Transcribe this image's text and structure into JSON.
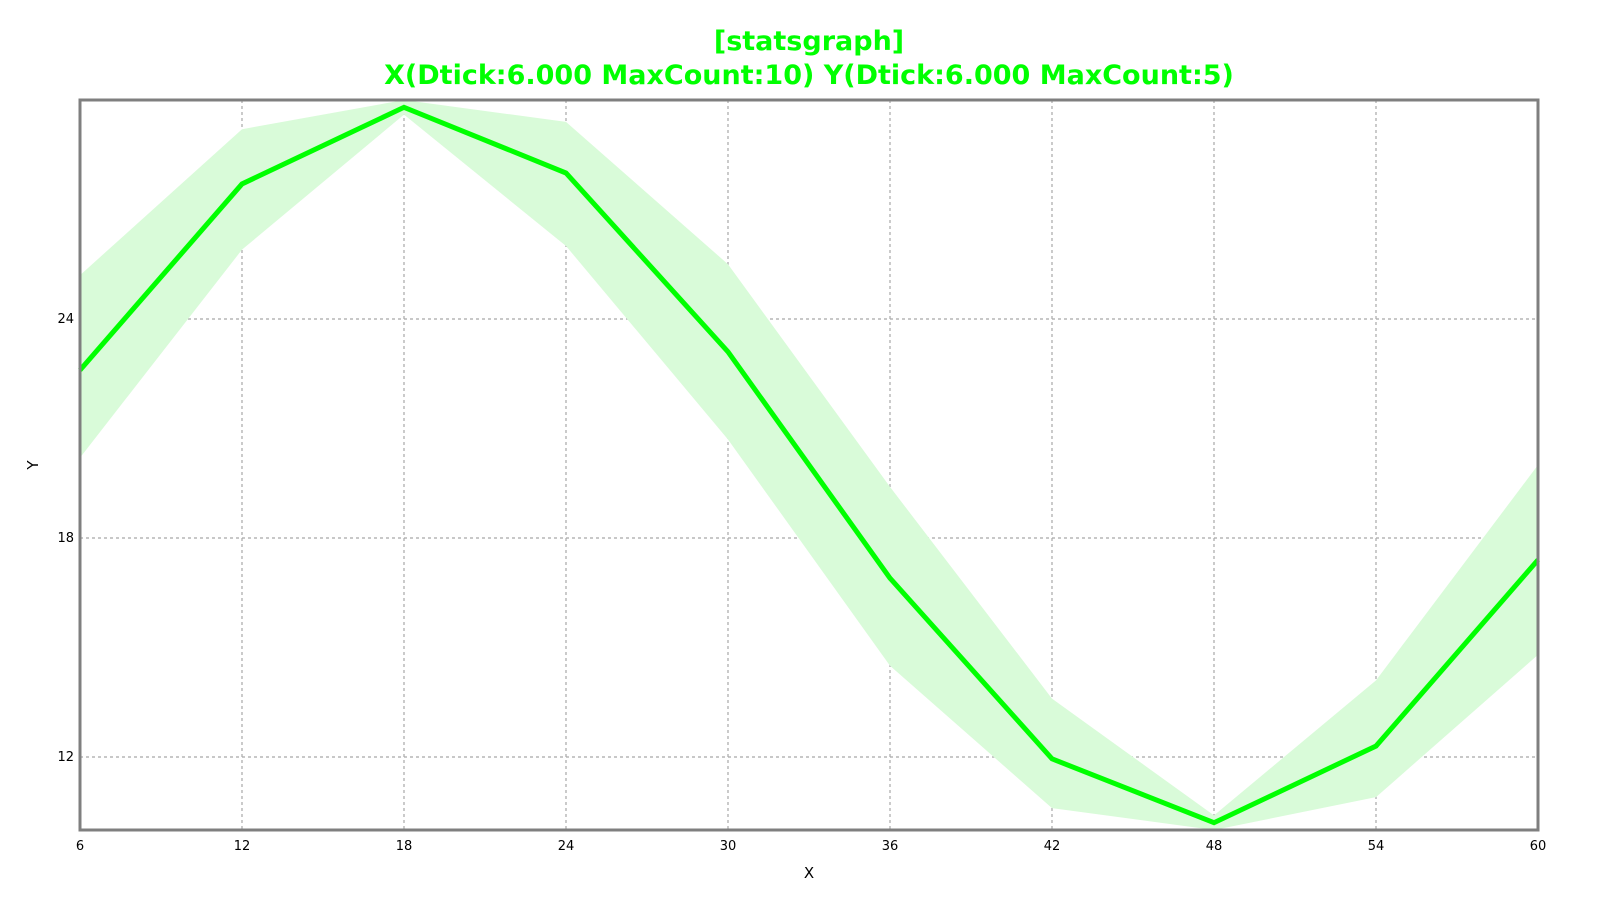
{
  "chart_data": {
    "type": "line",
    "title": "[statsgraph]",
    "subtitle": "X(Dtick:6.000 MaxCount:10) Y(Dtick:6.000 MaxCount:5)",
    "xlabel": "X",
    "ylabel": "Y",
    "xlim": [
      6,
      60
    ],
    "ylim": [
      10,
      30
    ],
    "x_ticks": [
      6,
      12,
      18,
      24,
      30,
      36,
      42,
      48,
      54,
      60
    ],
    "y_ticks": [
      12,
      18,
      24
    ],
    "grid": true,
    "line_color": "#00ff00",
    "band_color": "#d9fbd9",
    "title_color": "#00ff00",
    "series": [
      {
        "x": [
          6,
          12,
          18,
          24,
          30,
          36,
          42,
          48,
          54,
          60
        ],
        "values": [
          22.6,
          27.7,
          29.8,
          28.0,
          23.1,
          16.9,
          11.95,
          10.2,
          12.3,
          17.4
        ],
        "upper": [
          25.2,
          29.2,
          30.0,
          29.4,
          25.5,
          19.4,
          13.6,
          10.4,
          14.1,
          20.0
        ],
        "lower": [
          20.2,
          25.9,
          29.6,
          26.0,
          20.7,
          14.5,
          10.6,
          10.0,
          10.9,
          14.8
        ]
      }
    ]
  }
}
